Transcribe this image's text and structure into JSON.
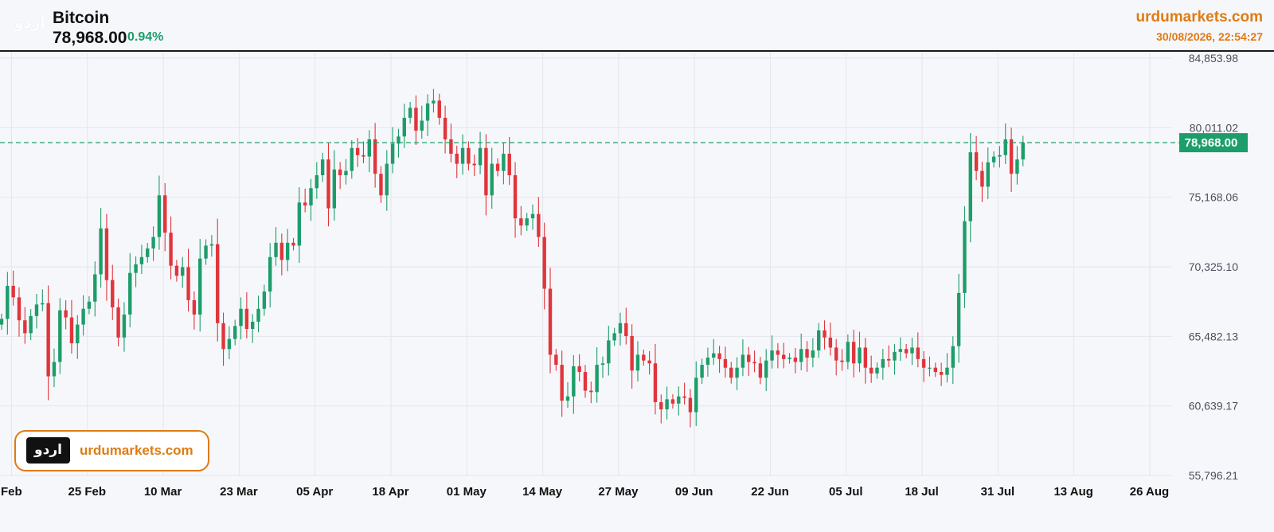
{
  "header": {
    "logo_text": "اردو",
    "title": "Bitcoin",
    "price": "78,968.00",
    "change": "0.94%",
    "site": "urdumarkets.com",
    "timestamp": "30/08/2026, 22:54:27"
  },
  "watermark": {
    "logo_text": "اردو",
    "site": "urdumarkets.com"
  },
  "colors": {
    "up": "#1d9d6a",
    "down": "#e0353b",
    "accent": "#e07b12",
    "grid": "#e3e6ec",
    "background": "#f6f7fb"
  },
  "chart_data": {
    "type": "candlestick",
    "symbol": "Bitcoin",
    "yticks": [
      "84,853.98",
      "80,011.02",
      "75,168.06",
      "70,325.10",
      "65,482.13",
      "60,639.17",
      "55,796.21"
    ],
    "ylim": [
      55796.21,
      84853.98
    ],
    "xticks": [
      "Feb",
      "25 Feb",
      "10 Mar",
      "23 Mar",
      "05 Apr",
      "18 Apr",
      "01 May",
      "14 May",
      "27 May",
      "09 Jun",
      "22 Jun",
      "05 Jul",
      "18 Jul",
      "31 Jul",
      "13 Aug",
      "26 Aug"
    ],
    "last_price": 78968.0,
    "last_price_label": "78,968.00",
    "closes": [
      66700,
      69000,
      68200,
      66600,
      65700,
      66900,
      67700,
      67800,
      62700,
      63700,
      67300,
      66800,
      65000,
      66300,
      67400,
      67900,
      69800,
      73000,
      69400,
      67500,
      65400,
      67000,
      69900,
      70500,
      71000,
      71600,
      72400,
      75300,
      72700,
      70400,
      69700,
      70300,
      68000,
      67000,
      70900,
      71800,
      71900,
      66400,
      64600,
      65300,
      66200,
      67400,
      66000,
      66500,
      67400,
      68600,
      71000,
      72000,
      70800,
      72000,
      71800,
      74800,
      74600,
      75800,
      76700,
      77800,
      74400,
      77100,
      76700,
      77000,
      78600,
      78100,
      78000,
      79200,
      76800,
      75300,
      77500,
      78900,
      79400,
      80700,
      81400,
      79800,
      80500,
      81700,
      81900,
      80700,
      79200,
      78200,
      77500,
      78600,
      77500,
      77400,
      78600,
      75300,
      77500,
      77000,
      78200,
      76700,
      73700,
      73200,
      73700,
      74000,
      72400,
      68800,
      64200,
      63500,
      61000,
      61300,
      63400,
      63000,
      61700,
      61600,
      63500,
      63600,
      65200,
      65700,
      66400,
      65500,
      63100,
      64200,
      63800,
      63600,
      60900,
      60400,
      61100,
      60800,
      61300,
      61200,
      60200,
      62600,
      63500,
      64000,
      64300,
      63900,
      63300,
      62600,
      63300,
      64200,
      63700,
      63600,
      62600,
      63800,
      64500,
      64200,
      63900,
      64000,
      63700,
      64600,
      64000,
      64500,
      65900,
      65400,
      64700,
      63800,
      63700,
      65100,
      63600,
      64700,
      63300,
      62900,
      63300,
      63900,
      63800,
      64400,
      64600,
      64300,
      64700,
      63900,
      63300,
      63300,
      63000,
      62800,
      63300,
      64800,
      68500,
      73500,
      78300,
      77000,
      75900,
      77600,
      78000,
      78100,
      79200,
      76800,
      77800,
      78968
    ]
  }
}
